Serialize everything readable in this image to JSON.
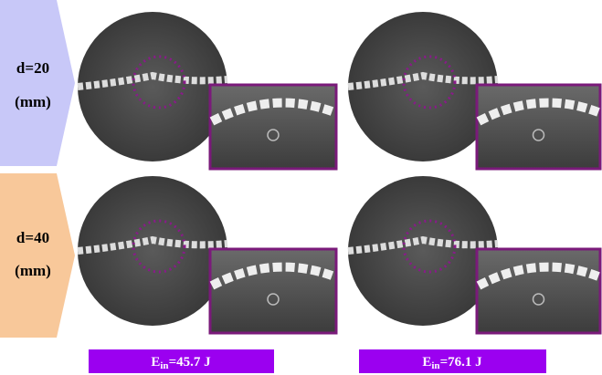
{
  "rows": [
    {
      "label": "d=20",
      "unit": "(mm)"
    },
    {
      "label": "d=40",
      "unit": "(mm)"
    }
  ],
  "columns": [
    {
      "symbol": "E",
      "subscript": "in",
      "value": "=45.7 J"
    },
    {
      "symbol": "E",
      "subscript": "in",
      "value": "=76.1 J"
    }
  ]
}
